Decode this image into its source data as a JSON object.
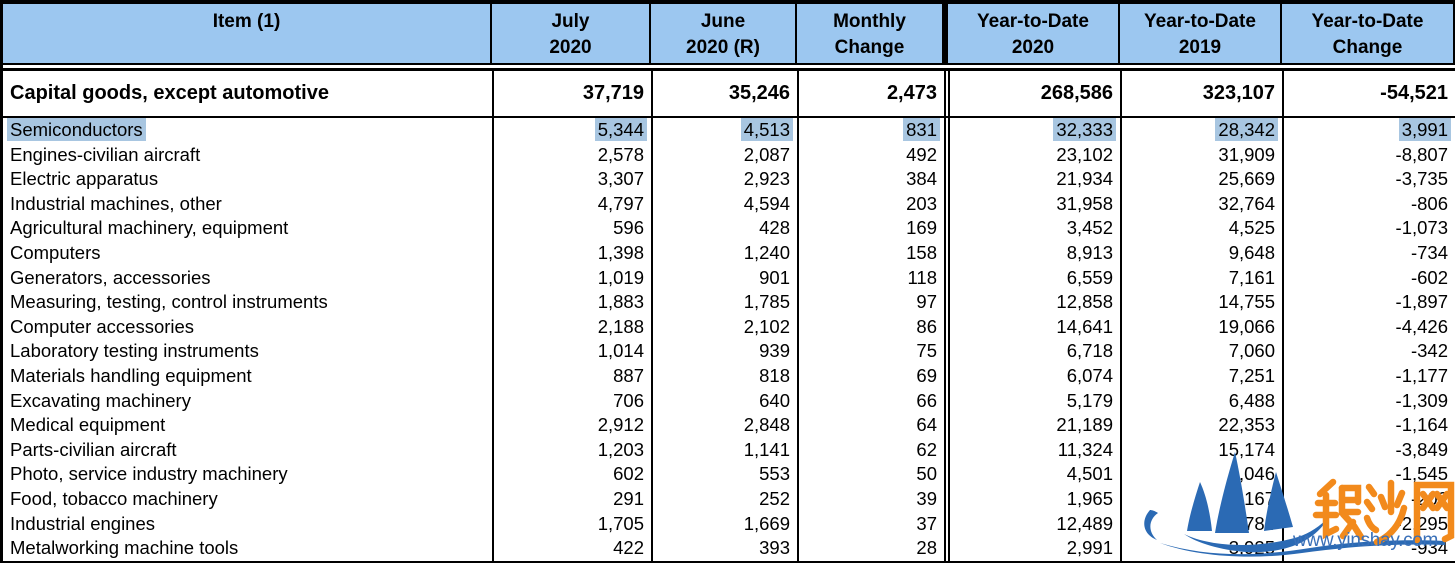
{
  "table": {
    "columns": [
      {
        "id": "item",
        "label_lines": [
          "Item (1)"
        ]
      },
      {
        "id": "july-2020",
        "label_lines": [
          "July",
          "2020"
        ]
      },
      {
        "id": "june-2020-r",
        "label_lines": [
          "June",
          "2020 (R)"
        ]
      },
      {
        "id": "monthly-change",
        "label_lines": [
          "Monthly",
          "Change"
        ]
      },
      {
        "id": "ytd-2020",
        "label_lines": [
          "Year-to-Date",
          "2020"
        ]
      },
      {
        "id": "ytd-2019",
        "label_lines": [
          "Year-to-Date",
          "2019"
        ]
      },
      {
        "id": "ytd-change",
        "label_lines": [
          "Year-to-Date",
          "Change"
        ]
      }
    ],
    "total_row": {
      "item": "Capital goods, except automotive",
      "values": [
        "37,719",
        "35,246",
        "2,473",
        "268,586",
        "323,107",
        "-54,521"
      ]
    },
    "rows": [
      {
        "item": "Semiconductors",
        "values": [
          "5,344",
          "4,513",
          "831",
          "32,333",
          "28,342",
          "3,991"
        ],
        "highlighted": true
      },
      {
        "item": "Engines-civilian aircraft",
        "values": [
          "2,578",
          "2,087",
          "492",
          "23,102",
          "31,909",
          "-8,807"
        ],
        "highlighted": false
      },
      {
        "item": "Electric apparatus",
        "values": [
          "3,307",
          "2,923",
          "384",
          "21,934",
          "25,669",
          "-3,735"
        ],
        "highlighted": false
      },
      {
        "item": "Industrial machines, other",
        "values": [
          "4,797",
          "4,594",
          "203",
          "31,958",
          "32,764",
          "-806"
        ],
        "highlighted": false
      },
      {
        "item": "Agricultural machinery, equipment",
        "values": [
          "596",
          "428",
          "169",
          "3,452",
          "4,525",
          "-1,073"
        ],
        "highlighted": false
      },
      {
        "item": "Computers",
        "values": [
          "1,398",
          "1,240",
          "158",
          "8,913",
          "9,648",
          "-734"
        ],
        "highlighted": false
      },
      {
        "item": "Generators, accessories",
        "values": [
          "1,019",
          "901",
          "118",
          "6,559",
          "7,161",
          "-602"
        ],
        "highlighted": false
      },
      {
        "item": "Measuring, testing, control instruments",
        "values": [
          "1,883",
          "1,785",
          "97",
          "12,858",
          "14,755",
          "-1,897"
        ],
        "highlighted": false
      },
      {
        "item": "Computer accessories",
        "values": [
          "2,188",
          "2,102",
          "86",
          "14,641",
          "19,066",
          "-4,426"
        ],
        "highlighted": false
      },
      {
        "item": "Laboratory testing instruments",
        "values": [
          "1,014",
          "939",
          "75",
          "6,718",
          "7,060",
          "-342"
        ],
        "highlighted": false
      },
      {
        "item": "Materials handling equipment",
        "values": [
          "887",
          "818",
          "69",
          "6,074",
          "7,251",
          "-1,177"
        ],
        "highlighted": false
      },
      {
        "item": "Excavating machinery",
        "values": [
          "706",
          "640",
          "66",
          "5,179",
          "6,488",
          "-1,309"
        ],
        "highlighted": false
      },
      {
        "item": "Medical equipment",
        "values": [
          "2,912",
          "2,848",
          "64",
          "21,189",
          "22,353",
          "-1,164"
        ],
        "highlighted": false
      },
      {
        "item": "Parts-civilian aircraft",
        "values": [
          "1,203",
          "1,141",
          "62",
          "11,324",
          "15,174",
          "-3,849"
        ],
        "highlighted": false
      },
      {
        "item": "Photo, service industry machinery",
        "values": [
          "602",
          "553",
          "50",
          "4,501",
          "6,046",
          "-1,545"
        ],
        "highlighted": false
      },
      {
        "item": "Food, tobacco machinery",
        "values": [
          "291",
          "252",
          "39",
          "1,965",
          "2,167",
          "-202"
        ],
        "highlighted": false
      },
      {
        "item": "Industrial engines",
        "values": [
          "1,705",
          "1,669",
          "37",
          "12,489",
          "14,784",
          "-2,295"
        ],
        "highlighted": false
      },
      {
        "item": "Metalworking machine tools",
        "values": [
          "422",
          "393",
          "28",
          "2,991",
          "3,925",
          "-934"
        ],
        "highlighted": false
      }
    ]
  },
  "watermark": {
    "site_name": "银沙网",
    "url": "www.yinshay.com"
  },
  "colors": {
    "header_bg": "#9cc7f0",
    "highlight_bg": "#a8c6e1",
    "border": "#000000",
    "watermark_blue": "#2b6ab4",
    "watermark_orange": "#f28a1c",
    "watermark_url_blue": "#3a70b8"
  }
}
